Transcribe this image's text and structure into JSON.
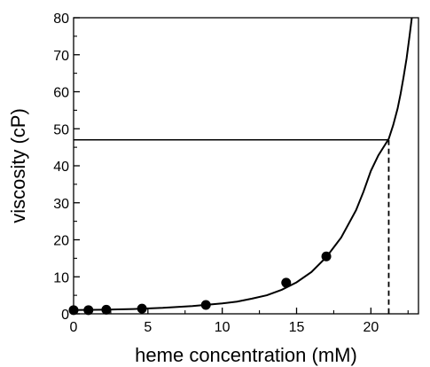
{
  "chart_data": {
    "type": "scatter",
    "title": "",
    "xlabel": "heme concentration (mM)",
    "ylabel": "viscosity (cP)",
    "xlim": [
      0,
      23.2
    ],
    "ylim": [
      0,
      80
    ],
    "x_ticks": [
      0,
      5,
      10,
      15,
      20
    ],
    "y_ticks": [
      0,
      10,
      20,
      30,
      40,
      50,
      60,
      70,
      80
    ],
    "x_minor_ticks": [
      2.5,
      7.5,
      12.5,
      17.5,
      22.5
    ],
    "y_minor_ticks": [
      5,
      15,
      25,
      35,
      45,
      55,
      65,
      75
    ],
    "grid": false,
    "legend": "none",
    "series": [
      {
        "kind": "points",
        "x": [
          0.0,
          1.0,
          2.2,
          4.6,
          8.9,
          14.3,
          17.0
        ],
        "y": [
          1.0,
          1.0,
          1.1,
          1.4,
          2.4,
          8.4,
          15.5
        ]
      },
      {
        "kind": "fit-curve",
        "x": [
          0,
          2,
          4,
          6,
          8,
          10,
          11,
          12,
          13,
          14,
          15,
          16,
          17,
          18,
          19,
          19.5,
          20,
          20.5,
          21,
          21.2,
          21.5,
          21.8,
          22.0,
          22.2,
          22.4,
          22.6,
          22.75
        ],
        "y": [
          1.0,
          1.1,
          1.3,
          1.6,
          2.1,
          2.8,
          3.3,
          4.1,
          5.0,
          6.5,
          8.5,
          11.3,
          15.3,
          20.6,
          28.0,
          33.0,
          38.6,
          42.8,
          46.0,
          47.3,
          51.0,
          55.5,
          59.5,
          64.0,
          69.0,
          75.0,
          80.0
        ]
      }
    ],
    "reference_lines": {
      "horizontal_y": 47.0,
      "horizontal_x_end": 21.2,
      "vertical_x": 21.2
    },
    "colors": {
      "points": "#000000",
      "curve": "#000000",
      "axes": "#000000"
    }
  }
}
